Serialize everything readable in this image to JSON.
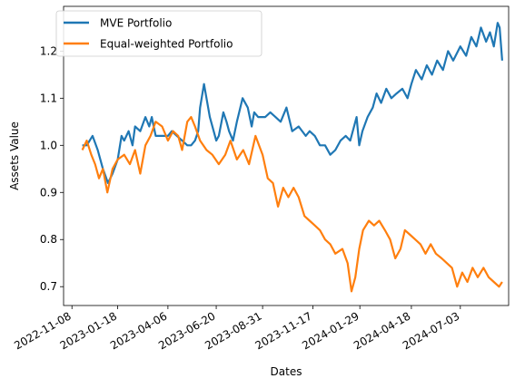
{
  "chart_data": {
    "type": "line",
    "title": "",
    "xlabel": "Dates",
    "ylabel": "Assets Value",
    "x_range": [
      "2022-10-26",
      "2024-09-16"
    ],
    "ylim": [
      0.66,
      1.295
    ],
    "grid": false,
    "legend_position": "top-left",
    "x_ticks": [
      "2022-11-08",
      "2023-01-18",
      "2023-04-06",
      "2023-06-20",
      "2023-08-31",
      "2023-11-17",
      "2024-01-29",
      "2024-04-18",
      "2024-07-03"
    ],
    "y_ticks": [
      "0.7",
      "0.8",
      "0.9",
      "1.0",
      "1.1",
      "1.2"
    ],
    "series": [
      {
        "name": "MVE Portfolio",
        "color": "#1f77b4",
        "x": [
          "2022-11-24",
          "2022-12-01",
          "2022-12-10",
          "2022-12-18",
          "2022-12-26",
          "2023-01-03",
          "2023-01-10",
          "2023-01-18",
          "2023-01-24",
          "2023-01-28",
          "2023-02-04",
          "2023-02-10",
          "2023-02-14",
          "2023-02-22",
          "2023-03-02",
          "2023-03-08",
          "2023-03-12",
          "2023-03-18",
          "2023-03-28",
          "2023-04-06",
          "2023-04-12",
          "2023-04-20",
          "2023-04-28",
          "2023-05-06",
          "2023-05-12",
          "2023-05-18",
          "2023-05-23",
          "2023-05-26",
          "2023-06-01",
          "2023-06-10",
          "2023-06-20",
          "2023-06-24",
          "2023-07-01",
          "2023-07-06",
          "2023-07-10",
          "2023-07-16",
          "2023-07-22",
          "2023-07-31",
          "2023-08-08",
          "2023-08-14",
          "2023-08-18",
          "2023-08-24",
          "2023-09-04",
          "2023-09-12",
          "2023-09-20",
          "2023-09-28",
          "2023-10-07",
          "2023-10-16",
          "2023-10-26",
          "2023-11-06",
          "2023-11-12",
          "2023-11-20",
          "2023-11-28",
          "2023-12-06",
          "2023-12-14",
          "2023-12-22",
          "2023-12-30",
          "2024-01-07",
          "2024-01-14",
          "2024-01-24",
          "2024-01-28",
          "2024-02-02",
          "2024-02-10",
          "2024-02-18",
          "2024-02-24",
          "2024-03-02",
          "2024-03-10",
          "2024-03-18",
          "2024-03-26",
          "2024-04-04",
          "2024-04-12",
          "2024-04-18",
          "2024-04-25",
          "2024-05-04",
          "2024-05-12",
          "2024-05-20",
          "2024-05-28",
          "2024-06-06",
          "2024-06-14",
          "2024-06-22",
          "2024-07-03",
          "2024-07-12",
          "2024-07-20",
          "2024-07-28",
          "2024-08-04",
          "2024-08-12",
          "2024-08-18",
          "2024-08-24",
          "2024-08-30",
          "2024-09-02",
          "2024-09-06"
        ],
        "values": [
          1.0,
          1.0,
          1.02,
          0.99,
          0.95,
          0.92,
          0.94,
          0.97,
          1.02,
          1.01,
          1.03,
          1.0,
          1.04,
          1.03,
          1.06,
          1.04,
          1.06,
          1.02,
          1.02,
          1.02,
          1.03,
          1.02,
          1.01,
          1.0,
          1.0,
          1.01,
          1.03,
          1.08,
          1.13,
          1.06,
          1.01,
          1.02,
          1.07,
          1.05,
          1.03,
          1.01,
          1.05,
          1.1,
          1.08,
          1.04,
          1.07,
          1.06,
          1.06,
          1.07,
          1.06,
          1.05,
          1.08,
          1.03,
          1.04,
          1.02,
          1.03,
          1.02,
          1.0,
          1.0,
          0.98,
          0.99,
          1.01,
          1.02,
          1.01,
          1.06,
          1.0,
          1.03,
          1.06,
          1.08,
          1.11,
          1.09,
          1.12,
          1.1,
          1.11,
          1.12,
          1.1,
          1.13,
          1.16,
          1.14,
          1.17,
          1.15,
          1.18,
          1.16,
          1.2,
          1.18,
          1.21,
          1.19,
          1.23,
          1.21,
          1.25,
          1.22,
          1.24,
          1.21,
          1.26,
          1.25,
          1.18
        ]
      },
      {
        "name": "Equal-weighted Portfolio",
        "color": "#ff7f0e",
        "x": [
          "2022-11-24",
          "2022-12-01",
          "2022-12-08",
          "2022-12-14",
          "2022-12-20",
          "2022-12-26",
          "2023-01-02",
          "2023-01-10",
          "2023-01-18",
          "2023-01-28",
          "2023-02-06",
          "2023-02-14",
          "2023-02-22",
          "2023-03-02",
          "2023-03-10",
          "2023-03-18",
          "2023-03-28",
          "2023-04-06",
          "2023-04-14",
          "2023-04-22",
          "2023-04-28",
          "2023-05-06",
          "2023-05-12",
          "2023-05-18",
          "2023-05-26",
          "2023-06-05",
          "2023-06-14",
          "2023-06-24",
          "2023-07-04",
          "2023-07-12",
          "2023-07-22",
          "2023-08-01",
          "2023-08-10",
          "2023-08-20",
          "2023-08-31",
          "2023-09-08",
          "2023-09-16",
          "2023-09-24",
          "2023-10-02",
          "2023-10-10",
          "2023-10-18",
          "2023-10-26",
          "2023-11-04",
          "2023-11-12",
          "2023-11-20",
          "2023-11-28",
          "2023-12-06",
          "2023-12-14",
          "2023-12-22",
          "2024-01-02",
          "2024-01-10",
          "2024-01-16",
          "2024-01-22",
          "2024-01-28",
          "2024-02-03",
          "2024-02-12",
          "2024-02-20",
          "2024-02-28",
          "2024-03-08",
          "2024-03-16",
          "2024-03-24",
          "2024-04-01",
          "2024-04-08",
          "2024-04-16",
          "2024-04-24",
          "2024-05-02",
          "2024-05-10",
          "2024-05-18",
          "2024-05-26",
          "2024-06-04",
          "2024-06-12",
          "2024-06-20",
          "2024-06-28",
          "2024-07-06",
          "2024-07-14",
          "2024-07-22",
          "2024-07-30",
          "2024-08-08",
          "2024-08-16",
          "2024-08-24",
          "2024-09-01",
          "2024-09-06"
        ],
        "values": [
          0.99,
          1.01,
          0.98,
          0.96,
          0.93,
          0.95,
          0.9,
          0.95,
          0.97,
          0.98,
          0.96,
          0.99,
          0.94,
          1.0,
          1.02,
          1.05,
          1.04,
          1.01,
          1.03,
          1.02,
          0.99,
          1.05,
          1.06,
          1.04,
          1.01,
          0.99,
          0.98,
          0.96,
          0.98,
          1.01,
          0.97,
          0.99,
          0.96,
          1.02,
          0.98,
          0.93,
          0.92,
          0.87,
          0.91,
          0.89,
          0.91,
          0.89,
          0.85,
          0.84,
          0.83,
          0.82,
          0.8,
          0.79,
          0.77,
          0.78,
          0.75,
          0.69,
          0.72,
          0.78,
          0.82,
          0.84,
          0.83,
          0.84,
          0.82,
          0.8,
          0.76,
          0.78,
          0.82,
          0.81,
          0.8,
          0.79,
          0.77,
          0.79,
          0.77,
          0.76,
          0.75,
          0.74,
          0.7,
          0.73,
          0.71,
          0.74,
          0.72,
          0.74,
          0.72,
          0.71,
          0.7,
          0.71
        ]
      }
    ]
  }
}
